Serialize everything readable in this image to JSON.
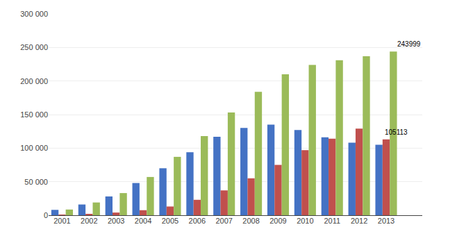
{
  "chart_data": {
    "type": "bar",
    "categories": [
      "2001",
      "2002",
      "2003",
      "2004",
      "2005",
      "2006",
      "2007",
      "2008",
      "2009",
      "2010",
      "2011",
      "2012",
      "2013"
    ],
    "series": [
      {
        "color": "#4472C4",
        "values": [
          8000,
          16000,
          28000,
          48000,
          70000,
          94000,
          117000,
          130000,
          135000,
          127000,
          116000,
          108000,
          105000
        ]
      },
      {
        "color": "#C0504D",
        "values": [
          1000,
          1500,
          4000,
          7500,
          13000,
          23000,
          37000,
          55000,
          75000,
          97000,
          114000,
          129000,
          113000
        ]
      },
      {
        "color": "#9BBB59",
        "values": [
          8500,
          19000,
          33000,
          57000,
          87000,
          118000,
          153000,
          184000,
          210000,
          224000,
          231000,
          237000,
          244000
        ]
      }
    ],
    "annotations": [
      "243999",
      "105113"
    ],
    "ylim": [
      0,
      300000
    ],
    "yticks": [
      0,
      {
        "value": 50000,
        "label": "50 000"
      },
      {
        "value": 100000,
        "label": "100 000"
      },
      {
        "value": 150000,
        "label": "150 000"
      },
      {
        "value": 200000,
        "label": "200 000"
      },
      {
        "value": 250000,
        "label": "250 000"
      },
      {
        "value": 300000,
        "label": "300 000"
      }
    ],
    "grid": true
  }
}
